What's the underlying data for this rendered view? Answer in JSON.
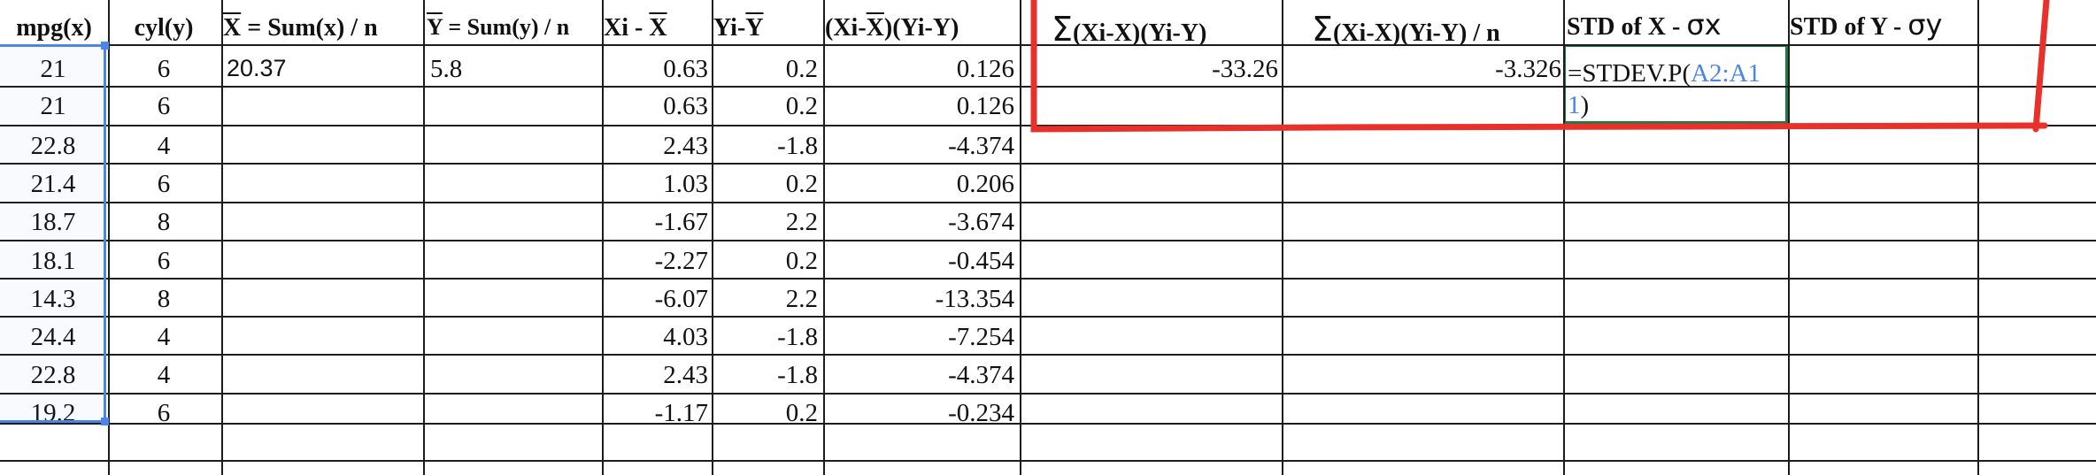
{
  "headers": {
    "mpg": "mpg(x)",
    "cyl": "cyl(y)",
    "xbar": "X = Sum(x) / n",
    "ybar": "Y = Sum(y) / n",
    "dx": "Xi - X",
    "dy": "Yi-Y",
    "prod": "(Xi-X)(Yi-Y)",
    "sum_prod": "(Xi-X)(Yi-Y)",
    "sum_prod_n": "(Xi-X)(Yi-Y) / n",
    "std_x": "STD of X -",
    "std_y": "STD of Y -"
  },
  "annotations": {
    "sigma": "Σ",
    "sigma_x": "σx",
    "sigma_y": "σy",
    "highlight_color": "#e8312a"
  },
  "summary": {
    "xbar_value": "20.37",
    "ybar_value": "5.8",
    "sum_prod_value": "-33.26",
    "cov_value": "-3.326"
  },
  "formula": {
    "prefix": "=STDEV.P(",
    "range_part1": "A2:A1",
    "range_part2": "1",
    "suffix": ")",
    "range_color": "#4a86e8",
    "border_color": "#1f7a3f"
  },
  "rows": [
    {
      "mpg": "21",
      "cyl": "6",
      "dx": "0.63",
      "dy": "0.2",
      "prod": "0.126"
    },
    {
      "mpg": "21",
      "cyl": "6",
      "dx": "0.63",
      "dy": "0.2",
      "prod": "0.126"
    },
    {
      "mpg": "22.8",
      "cyl": "4",
      "dx": "2.43",
      "dy": "-1.8",
      "prod": "-4.374"
    },
    {
      "mpg": "21.4",
      "cyl": "6",
      "dx": "1.03",
      "dy": "0.2",
      "prod": "0.206"
    },
    {
      "mpg": "18.7",
      "cyl": "8",
      "dx": "-1.67",
      "dy": "2.2",
      "prod": "-3.674"
    },
    {
      "mpg": "18.1",
      "cyl": "6",
      "dx": "-2.27",
      "dy": "0.2",
      "prod": "-0.454"
    },
    {
      "mpg": "14.3",
      "cyl": "8",
      "dx": "-6.07",
      "dy": "2.2",
      "prod": "-13.354"
    },
    {
      "mpg": "24.4",
      "cyl": "4",
      "dx": "4.03",
      "dy": "-1.8",
      "prod": "-7.254"
    },
    {
      "mpg": "22.8",
      "cyl": "4",
      "dx": "2.43",
      "dy": "-1.8",
      "prod": "-4.374"
    },
    {
      "mpg": "19.2",
      "cyl": "6",
      "dx": "-1.17",
      "dy": "0.2",
      "prod": "-0.234"
    }
  ]
}
